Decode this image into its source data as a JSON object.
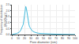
{
  "chart_data": {
    "type": "line",
    "xlabel": "Pore diameter (nm)",
    "ylabel": "Frequency of distribution\n(dV/d(logr))",
    "x": [
      0,
      2,
      4,
      6,
      8,
      10,
      12,
      14,
      16,
      18,
      20,
      21,
      22,
      23,
      24,
      25,
      26,
      27,
      28,
      30,
      32,
      35,
      38,
      40,
      45,
      50,
      55,
      60,
      70,
      80,
      90,
      100
    ],
    "values": [
      0,
      0.02,
      0.04,
      0.06,
      0.1,
      0.15,
      0.22,
      0.35,
      0.55,
      0.85,
      1.6,
      2.1,
      2.35,
      2.2,
      1.8,
      1.4,
      1.1,
      0.85,
      0.65,
      0.45,
      0.32,
      0.22,
      0.16,
      0.13,
      0.09,
      0.07,
      0.055,
      0.04,
      0.03,
      0.02,
      0.01,
      0.005
    ],
    "color": "#44BBDD",
    "xlim": [
      0,
      100
    ],
    "ylim": [
      0,
      2.5
    ],
    "xticks": [
      0,
      10,
      20,
      30,
      40,
      50,
      60,
      70,
      80,
      90,
      100
    ],
    "yticks": [
      {
        "value": 0,
        "label": "0.0"
      },
      0.5,
      {
        "value": 1,
        "label": "1.0"
      },
      1.5,
      {
        "value": 2,
        "label": "2.0"
      },
      2.5
    ],
    "grid": true
  }
}
